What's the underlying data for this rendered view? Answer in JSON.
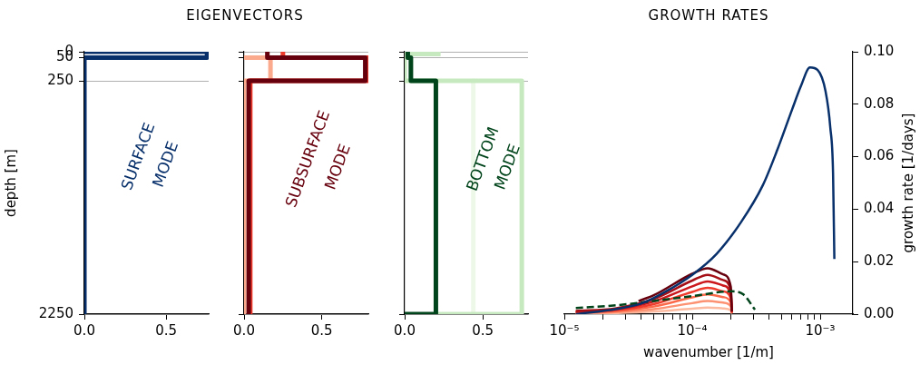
{
  "chart_data": [
    {
      "type": "line",
      "ylabel": "depth [m]",
      "xlim": [
        0,
        0.76
      ],
      "xticks": [
        {
          "value": 0,
          "label": "0.0"
        },
        {
          "value": 0.5,
          "label": "0.5"
        }
      ],
      "ylim": [
        2250,
        0
      ],
      "yticks": [
        0,
        50,
        250,
        2250
      ],
      "grid": "y",
      "annotations": [
        "SURFACE",
        "MODE"
      ],
      "series": [
        {
          "color": "#08306b",
          "x": [
            0,
            0.75,
            0.75,
            0,
            0
          ],
          "values": [
            0,
            0,
            50,
            50,
            2250
          ]
        }
      ]
    },
    {
      "type": "line",
      "title": "EIGENVECTORS",
      "xlim": [
        0,
        0.8
      ],
      "xticks": [
        {
          "value": 0,
          "label": "0.0"
        },
        {
          "value": 0.5,
          "label": "0.5"
        }
      ],
      "ylim": [
        2250,
        0
      ],
      "yticks": [
        0,
        50,
        250,
        2250
      ],
      "grid": "y",
      "tick_labels": "x",
      "annotations": [
        "SUBSURFACE",
        "MODE"
      ],
      "series": [
        {
          "color": "#67000d",
          "x": [
            0.15,
            0.15,
            0.78,
            0.78,
            0.03,
            0.03
          ],
          "values": [
            0,
            50,
            50,
            250,
            250,
            2250
          ]
        },
        {
          "color": "#ef3b2c",
          "x": [
            0.25,
            0.25,
            0.8,
            0.8,
            0.04,
            0.04
          ],
          "values": [
            0,
            50,
            50,
            250,
            250,
            2250
          ]
        },
        {
          "color": "#fcaa8e",
          "x": [
            0,
            0.17,
            0.17,
            0,
            0
          ],
          "values": [
            50,
            50,
            250,
            250,
            2250
          ]
        }
      ]
    },
    {
      "type": "line",
      "xlim": [
        0,
        0.79
      ],
      "xticks": [
        {
          "value": 0,
          "label": "0.0"
        },
        {
          "value": 0.5,
          "label": "0.5"
        }
      ],
      "ylim": [
        2250,
        0
      ],
      "yticks": [
        0,
        50,
        250,
        2250
      ],
      "grid": "y",
      "tick_labels": "x",
      "annotations": [
        "BOTTOM",
        "MODE"
      ],
      "series": [
        {
          "color": "#00441b",
          "x": [
            0.02,
            0.02,
            0.04,
            0.04,
            0.2,
            0.2,
            0
          ],
          "values": [
            0,
            50,
            50,
            250,
            250,
            2250,
            2250
          ]
        },
        {
          "color": "#c7e9c0",
          "x": [
            0.23,
            0,
            0,
            0.75,
            0.75,
            0.2
          ],
          "values": [
            20,
            20,
            250,
            250,
            2250,
            2250
          ]
        },
        {
          "color": "#edf8e9",
          "x": [
            0.44,
            0.44
          ],
          "values": [
            250,
            2250
          ]
        }
      ]
    },
    {
      "type": "line",
      "title": "GROWTH RATES",
      "xlabel": "wavenumber [1/m]",
      "y2label": "growth rate [1/days]",
      "log": "x",
      "xlim": [
        1e-05,
        0.0018
      ],
      "xticks": [
        {
          "value": 1e-05,
          "label": "10⁻⁵"
        },
        {
          "value": 2e-05,
          "label": null
        },
        {
          "value": 3e-05,
          "label": null
        },
        {
          "value": 4e-05,
          "label": null
        },
        {
          "value": 5e-05,
          "label": null
        },
        {
          "value": 6e-05,
          "label": null
        },
        {
          "value": 7e-05,
          "label": null
        },
        {
          "value": 8e-05,
          "label": null
        },
        {
          "value": 9e-05,
          "label": null
        },
        {
          "value": 0.0001,
          "label": "10⁻⁴"
        },
        {
          "value": 0.0002,
          "label": null
        },
        {
          "value": 0.0003,
          "label": null
        },
        {
          "value": 0.0004,
          "label": null
        },
        {
          "value": 0.0005,
          "label": null
        },
        {
          "value": 0.0006,
          "label": null
        },
        {
          "value": 0.0007,
          "label": null
        },
        {
          "value": 0.0008,
          "label": null
        },
        {
          "value": 0.0009,
          "label": null
        },
        {
          "value": 0.001,
          "label": "10⁻³"
        }
      ],
      "y2lim": [
        0,
        0.1
      ],
      "y2ticks": [
        {
          "value": 0,
          "label": "0.00"
        },
        {
          "value": 0.02,
          "label": "0.02"
        },
        {
          "value": 0.04,
          "label": "0.04"
        },
        {
          "value": 0.06,
          "label": "0.06"
        },
        {
          "value": 0.08,
          "label": "0.08"
        },
        {
          "value": 0.1,
          "label": "0.10"
        }
      ],
      "series": [
        {
          "color": "#08306b",
          "axis": "y2",
          "x": [
            1.23e-05,
            2.57e-05,
            3.98e-05,
            5.89e-05,
            0.0001,
            0.000155,
            0.00024,
            0.000355,
            0.000457,
            0.000603,
            0.000708,
            0.000832,
            0.000955,
            0.0011,
            0.0012,
            0.00126,
            0.00129
          ],
          "values": [
            0,
            0.002,
            0.004,
            0.008,
            0.015,
            0.023,
            0.035,
            0.049,
            0.062,
            0.078,
            0.087,
            0.094,
            0.093,
            0.085,
            0.071,
            0.054,
            0.021
          ]
        },
        {
          "color": "#00441b",
          "axis": "y2",
          "line_style": "dashed",
          "x": [
            1.23e-05,
            2.57e-05,
            0.0001,
            0.000204,
            0.000251,
            0.000309
          ],
          "values": [
            0.0023,
            0.0034,
            0.0069,
            0.0087,
            0.0075,
            0.0017
          ]
        },
        {
          "color": "#67000d",
          "axis": "y2",
          "x": [
            3.8e-05,
            5e-05,
            0.0001,
            0.000132,
            0.000174,
            0.0002,
            0.000204
          ],
          "values": [
            0.005,
            0.0072,
            0.0154,
            0.0175,
            0.0152,
            0.0105,
            0.001
          ]
        },
        {
          "color": "#a50f15",
          "axis": "y2",
          "x": [
            1.23e-05,
            2.5e-05,
            5e-05,
            0.0001,
            0.000132,
            0.000174,
            0.0002,
            0.000204
          ],
          "values": [
            0.0012,
            0.0022,
            0.0058,
            0.0128,
            0.015,
            0.013,
            0.009,
            0.001
          ]
        },
        {
          "color": "#cb181d",
          "axis": "y2",
          "x": [
            1.23e-05,
            2.5e-05,
            5e-05,
            0.0001,
            0.000132,
            0.000174,
            0.0002,
            0.000204
          ],
          "values": [
            0.001,
            0.0018,
            0.0048,
            0.0106,
            0.0125,
            0.0109,
            0.0075,
            0.0008
          ]
        },
        {
          "color": "#ef3b2c",
          "axis": "y2",
          "x": [
            1.23e-05,
            2.5e-05,
            5e-05,
            0.0001,
            0.000132,
            0.000174,
            0.0002,
            0.000204
          ],
          "values": [
            0.0008,
            0.0015,
            0.0038,
            0.0085,
            0.01,
            0.0087,
            0.006,
            0.0006
          ]
        },
        {
          "color": "#fb6a4a",
          "axis": "y2",
          "x": [
            1.23e-05,
            2.5e-05,
            5e-05,
            0.0001,
            0.000132,
            0.000174,
            0.0002,
            0.000204
          ],
          "values": [
            0.0006,
            0.0011,
            0.0029,
            0.0064,
            0.0075,
            0.0065,
            0.0045,
            0.0005
          ]
        },
        {
          "color": "#fc9272",
          "axis": "y2",
          "x": [
            1.23e-05,
            2.5e-05,
            5e-05,
            0.0001,
            0.000132,
            0.000174,
            0.0002,
            0.000204
          ],
          "values": [
            0.0004,
            0.0008,
            0.0019,
            0.0042,
            0.005,
            0.0044,
            0.003,
            0.0003
          ]
        },
        {
          "color": "#fcbba1",
          "axis": "y2",
          "x": [
            1.23e-05,
            2.5e-05,
            5e-05,
            0.0001,
            0.000132,
            0.000174,
            0.0002,
            0.000204
          ],
          "values": [
            0.0002,
            0.0004,
            0.001,
            0.0021,
            0.0025,
            0.0022,
            0.0015,
            0.0002
          ]
        }
      ]
    }
  ]
}
